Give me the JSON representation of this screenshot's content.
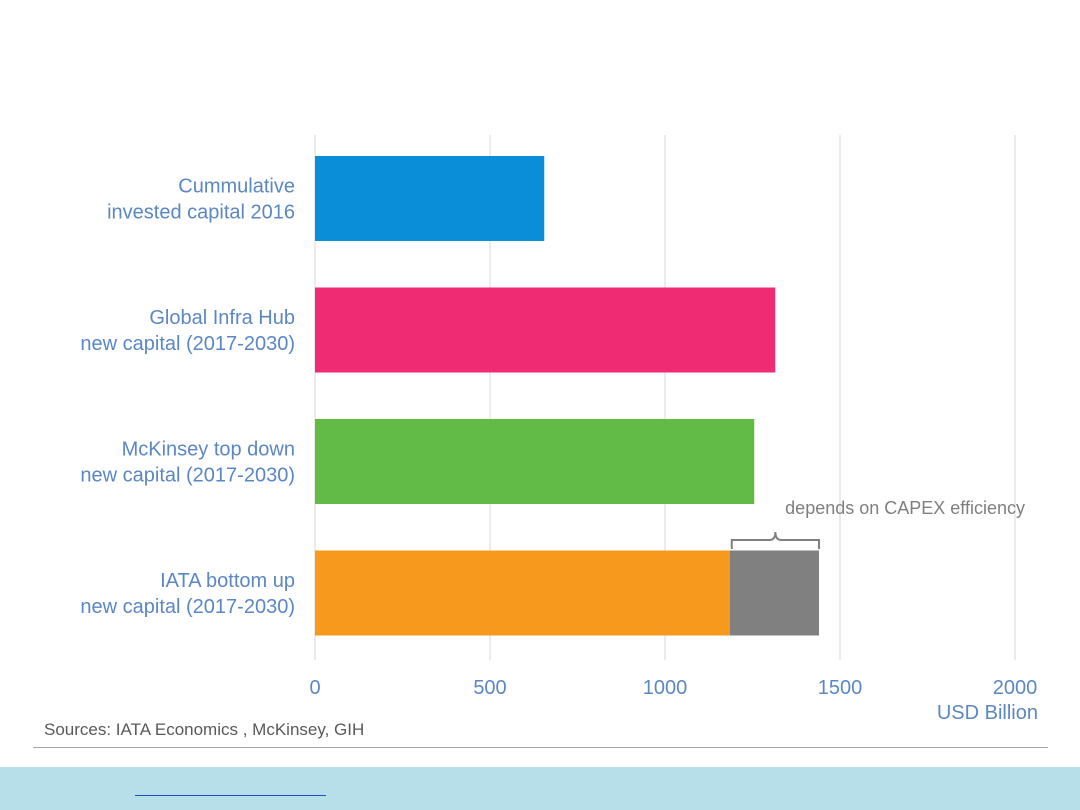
{
  "chart_data": {
    "type": "bar",
    "orientation": "horizontal",
    "stacked": true,
    "categories": [
      "Cummulative\ninvested capital 2016",
      "Global Infra Hub\nnew capital (2017-2030)",
      "McKinsey top down\nnew capital (2017-2030)",
      "IATA bottom up\nnew capital (2017-2030)"
    ],
    "series": [
      {
        "values": [
          655,
          1315,
          1255,
          1185
        ],
        "color": "#0b8ed8"
      },
      {
        "values": [
          0,
          0,
          0,
          255
        ],
        "color": "#808080"
      }
    ],
    "category_colors": [
      "#0b8ed8",
      "#ef2b74",
      "#62bb46",
      "#f7991c"
    ],
    "xlim": [
      0,
      2000
    ],
    "xticks": [
      0,
      500,
      1000,
      1500,
      2000
    ],
    "xlabel": "USD Billion",
    "grid": true,
    "annotation": "depends on CAPEX efficiency"
  },
  "sources": "Sources: IATA Economics , McKinsey, GIH"
}
